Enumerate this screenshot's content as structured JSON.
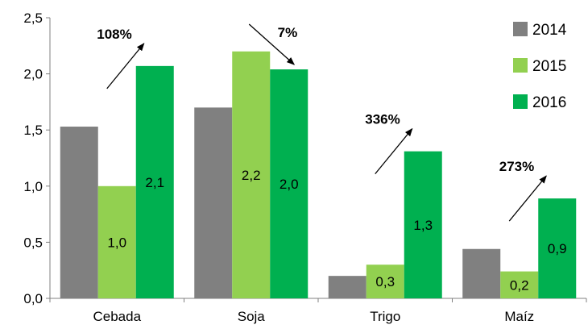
{
  "chart_data": {
    "type": "bar",
    "title": "",
    "xlabel": "",
    "ylabel": "",
    "categories": [
      "Cebada",
      "Soja",
      "Trigo",
      "Maíz"
    ],
    "series": [
      {
        "name": "2014",
        "color": "#808080",
        "values": [
          1.53,
          1.7,
          0.2,
          0.44
        ],
        "labels": [
          "",
          "",
          "",
          ""
        ]
      },
      {
        "name": "2015",
        "color": "#92d050",
        "values": [
          1.0,
          2.2,
          0.3,
          0.24
        ],
        "labels": [
          "1,0",
          "2,2",
          "0,3",
          "0,2"
        ]
      },
      {
        "name": "2016",
        "color": "#00b050",
        "values": [
          2.07,
          2.04,
          1.31,
          0.89
        ],
        "labels": [
          "2,1",
          "2,0",
          "1,3",
          "0,9"
        ]
      }
    ],
    "ylim": [
      0,
      2.5
    ],
    "yticks": [
      "0,0",
      "0,5",
      "1,0",
      "1,5",
      "2,0",
      "2,5"
    ],
    "grid": false,
    "legend_position": "top-right",
    "annotations": [
      {
        "category": "Cebada",
        "text": "108%",
        "direction": "up"
      },
      {
        "category": "Soja",
        "text": "7%",
        "direction": "down"
      },
      {
        "category": "Trigo",
        "text": "336%",
        "direction": "up"
      },
      {
        "category": "Maíz",
        "text": "273%",
        "direction": "up"
      }
    ]
  }
}
